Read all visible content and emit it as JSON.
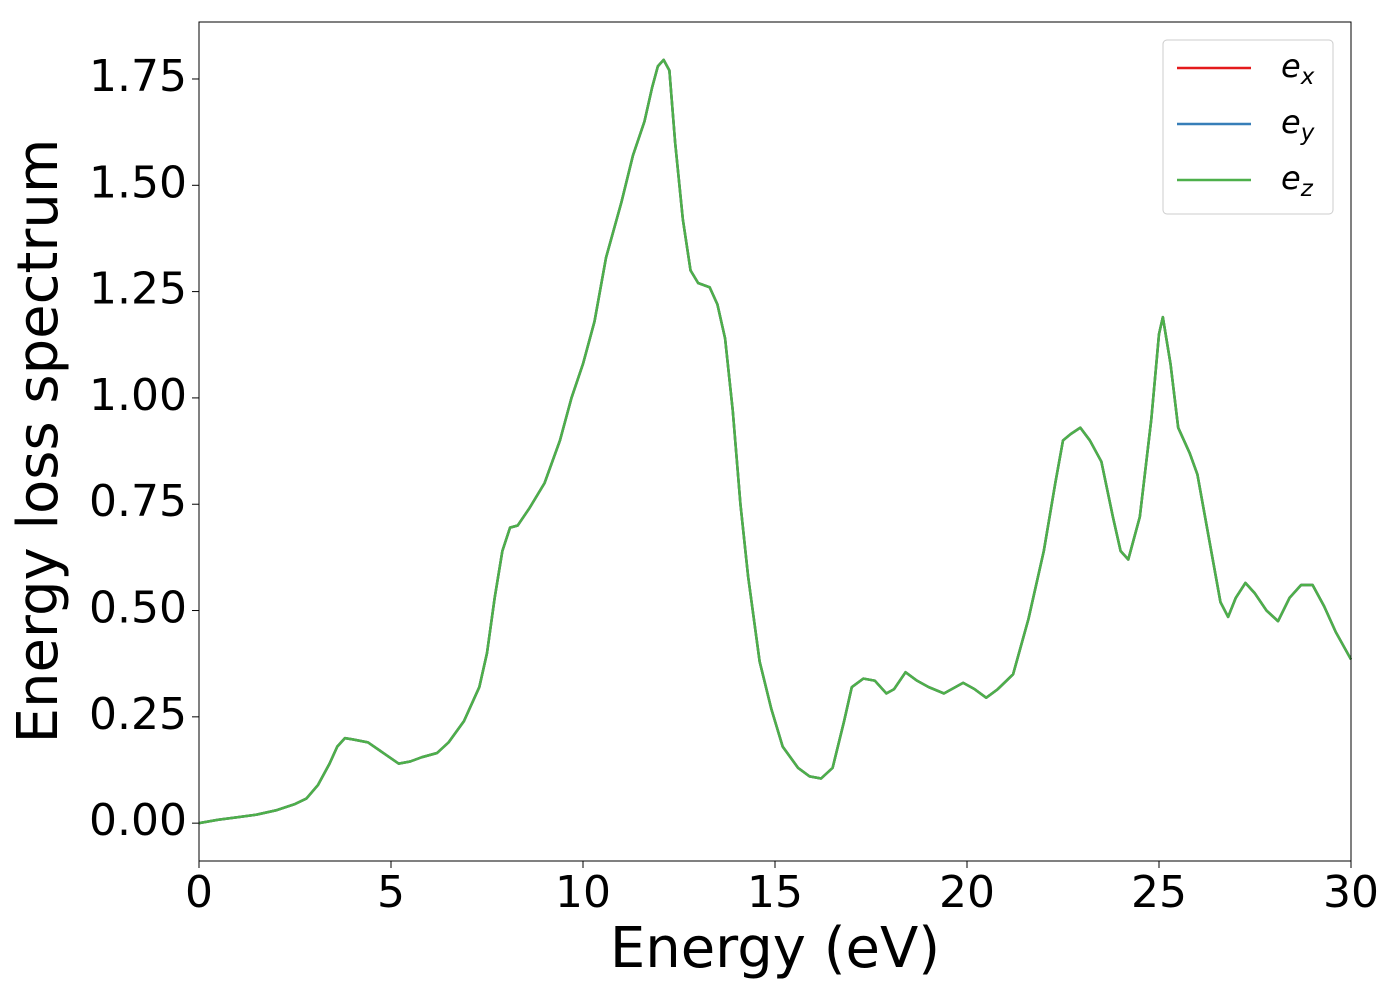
{
  "chart_data": {
    "type": "line",
    "xlabel": "Energy (eV)",
    "ylabel": "Energy loss spectrum",
    "xlim": [
      0,
      30
    ],
    "ylim": [
      -0.089,
      1.884
    ],
    "xticks": [
      0,
      5,
      10,
      15,
      20,
      25,
      30
    ],
    "yticks": [
      {
        "value": 0,
        "label": "0.00"
      },
      {
        "value": 0.25,
        "label": "0.25"
      },
      {
        "value": 0.5,
        "label": "0.50"
      },
      {
        "value": 0.75,
        "label": "0.75"
      },
      {
        "value": 1,
        "label": "1.00"
      },
      {
        "value": 1.25,
        "label": "1.25"
      },
      {
        "value": 1.5,
        "label": "1.50"
      },
      {
        "value": 1.75,
        "label": "1.75"
      }
    ],
    "legend": "upper right",
    "x": [
      0,
      0.5,
      1,
      1.5,
      2,
      2.5,
      2.8,
      3.1,
      3.4,
      3.6,
      3.8,
      4.0,
      4.4,
      4.8,
      5.2,
      5.5,
      5.8,
      6.2,
      6.5,
      6.9,
      7.3,
      7.5,
      7.7,
      7.9,
      8.1,
      8.3,
      8.6,
      9.0,
      9.4,
      9.7,
      10.0,
      10.3,
      10.6,
      11.0,
      11.3,
      11.6,
      11.8,
      11.95,
      12.1,
      12.25,
      12.4,
      12.6,
      12.8,
      13.0,
      13.3,
      13.5,
      13.7,
      13.9,
      14.1,
      14.3,
      14.6,
      14.9,
      15.2,
      15.6,
      15.9,
      16.2,
      16.5,
      16.8,
      17.0,
      17.3,
      17.6,
      17.9,
      18.1,
      18.4,
      18.7,
      19.0,
      19.4,
      19.7,
      19.9,
      20.2,
      20.5,
      20.8,
      21.2,
      21.6,
      22.0,
      22.3,
      22.5,
      22.7,
      22.95,
      23.2,
      23.5,
      23.8,
      24.0,
      24.2,
      24.5,
      24.8,
      25.0,
      25.1,
      25.3,
      25.5,
      25.8,
      26.0,
      26.3,
      26.6,
      26.8,
      27.0,
      27.25,
      27.5,
      27.8,
      28.1,
      28.4,
      28.7,
      29.0,
      29.3,
      29.6,
      30
    ],
    "series": [
      {
        "name": "e_x",
        "color": "#e41a1c",
        "values": [
          0,
          0.008,
          0.014,
          0.02,
          0.03,
          0.045,
          0.058,
          0.09,
          0.14,
          0.18,
          0.2,
          0.197,
          0.19,
          0.165,
          0.14,
          0.145,
          0.155,
          0.165,
          0.19,
          0.24,
          0.32,
          0.4,
          0.53,
          0.64,
          0.695,
          0.7,
          0.74,
          0.8,
          0.9,
          1.0,
          1.08,
          1.18,
          1.33,
          1.46,
          1.57,
          1.65,
          1.73,
          1.78,
          1.795,
          1.77,
          1.6,
          1.42,
          1.3,
          1.27,
          1.26,
          1.22,
          1.14,
          0.97,
          0.75,
          0.58,
          0.38,
          0.27,
          0.18,
          0.13,
          0.11,
          0.105,
          0.13,
          0.24,
          0.32,
          0.34,
          0.335,
          0.305,
          0.315,
          0.355,
          0.335,
          0.32,
          0.305,
          0.32,
          0.33,
          0.315,
          0.295,
          0.315,
          0.35,
          0.48,
          0.64,
          0.8,
          0.9,
          0.915,
          0.93,
          0.9,
          0.85,
          0.72,
          0.64,
          0.62,
          0.72,
          0.95,
          1.15,
          1.19,
          1.08,
          0.93,
          0.87,
          0.82,
          0.67,
          0.52,
          0.485,
          0.53,
          0.565,
          0.54,
          0.5,
          0.475,
          0.53,
          0.56,
          0.56,
          0.51,
          0.45,
          0.385
        ]
      },
      {
        "name": "e_y",
        "color": "#377eb8",
        "values": [
          0,
          0.008,
          0.014,
          0.02,
          0.03,
          0.045,
          0.058,
          0.09,
          0.14,
          0.18,
          0.2,
          0.197,
          0.19,
          0.165,
          0.14,
          0.145,
          0.155,
          0.165,
          0.19,
          0.24,
          0.32,
          0.4,
          0.53,
          0.64,
          0.695,
          0.7,
          0.74,
          0.8,
          0.9,
          1.0,
          1.08,
          1.18,
          1.33,
          1.46,
          1.57,
          1.65,
          1.73,
          1.78,
          1.795,
          1.77,
          1.6,
          1.42,
          1.3,
          1.27,
          1.26,
          1.22,
          1.14,
          0.97,
          0.75,
          0.58,
          0.38,
          0.27,
          0.18,
          0.13,
          0.11,
          0.105,
          0.13,
          0.24,
          0.32,
          0.34,
          0.335,
          0.305,
          0.315,
          0.355,
          0.335,
          0.32,
          0.305,
          0.32,
          0.33,
          0.315,
          0.295,
          0.315,
          0.35,
          0.48,
          0.64,
          0.8,
          0.9,
          0.915,
          0.93,
          0.9,
          0.85,
          0.72,
          0.64,
          0.62,
          0.72,
          0.95,
          1.15,
          1.19,
          1.08,
          0.93,
          0.87,
          0.82,
          0.67,
          0.52,
          0.485,
          0.53,
          0.565,
          0.54,
          0.5,
          0.475,
          0.53,
          0.56,
          0.56,
          0.51,
          0.45,
          0.385
        ]
      },
      {
        "name": "e_z",
        "color": "#4daf4a",
        "values": [
          0,
          0.008,
          0.014,
          0.02,
          0.03,
          0.045,
          0.058,
          0.09,
          0.14,
          0.18,
          0.2,
          0.197,
          0.19,
          0.165,
          0.14,
          0.145,
          0.155,
          0.165,
          0.19,
          0.24,
          0.32,
          0.4,
          0.53,
          0.64,
          0.695,
          0.7,
          0.74,
          0.8,
          0.9,
          1.0,
          1.08,
          1.18,
          1.33,
          1.46,
          1.57,
          1.65,
          1.73,
          1.78,
          1.795,
          1.77,
          1.6,
          1.42,
          1.3,
          1.27,
          1.26,
          1.22,
          1.14,
          0.97,
          0.75,
          0.58,
          0.38,
          0.27,
          0.18,
          0.13,
          0.11,
          0.105,
          0.13,
          0.24,
          0.32,
          0.34,
          0.335,
          0.305,
          0.315,
          0.355,
          0.335,
          0.32,
          0.305,
          0.32,
          0.33,
          0.315,
          0.295,
          0.315,
          0.35,
          0.48,
          0.64,
          0.8,
          0.9,
          0.915,
          0.93,
          0.9,
          0.85,
          0.72,
          0.64,
          0.62,
          0.72,
          0.95,
          1.15,
          1.19,
          1.08,
          0.93,
          0.87,
          0.82,
          0.67,
          0.52,
          0.485,
          0.53,
          0.565,
          0.54,
          0.5,
          0.475,
          0.53,
          0.56,
          0.56,
          0.51,
          0.45,
          0.385
        ]
      }
    ]
  }
}
